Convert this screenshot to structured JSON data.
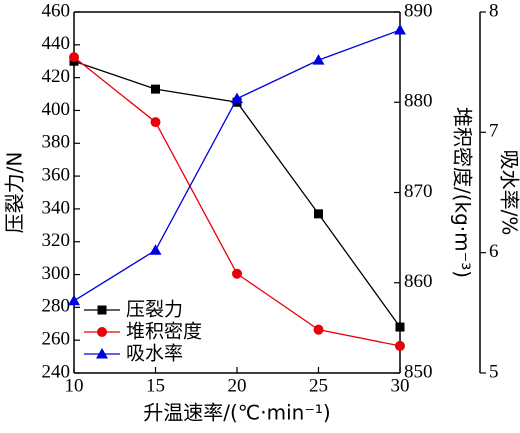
{
  "chart_data": {
    "type": "line",
    "x": [
      10,
      15,
      20,
      25,
      30
    ],
    "xlim": [
      10,
      30
    ],
    "xticks": [
      "10",
      "15",
      "20",
      "25",
      "30"
    ],
    "xlabel": "升温速率/(℃·min⁻¹)",
    "axes": {
      "left": {
        "label": "压裂力/N",
        "range": [
          240,
          460
        ],
        "ticks": [
          "240",
          "260",
          "280",
          "300",
          "320",
          "340",
          "360",
          "380",
          "400",
          "420",
          "440",
          "460"
        ]
      },
      "right1": {
        "label": "堆积密度/(kg·m⁻³)",
        "range": [
          850,
          890
        ],
        "ticks": [
          "850",
          "860",
          "870",
          "880",
          "890"
        ]
      },
      "right2": {
        "label": "吸水率/%",
        "range": [
          5,
          8
        ],
        "ticks": [
          "5",
          "6",
          "7",
          "8"
        ]
      }
    },
    "series": [
      {
        "name": "压裂力",
        "axis": "left",
        "color": "#000000",
        "marker": "square",
        "values": [
          430,
          413,
          405,
          337,
          268
        ]
      },
      {
        "name": "堆积密度",
        "axis": "right1",
        "color": "#e8000b",
        "marker": "circle",
        "values": [
          885.0,
          877.8,
          861.0,
          854.8,
          853.0
        ]
      },
      {
        "name": "吸水率",
        "axis": "right2",
        "color": "#0000e0",
        "marker": "triangle",
        "values": [
          5.6,
          6.02,
          7.28,
          7.6,
          7.85
        ]
      }
    ],
    "legend": {
      "position": "bottom-left"
    },
    "grid": false
  }
}
